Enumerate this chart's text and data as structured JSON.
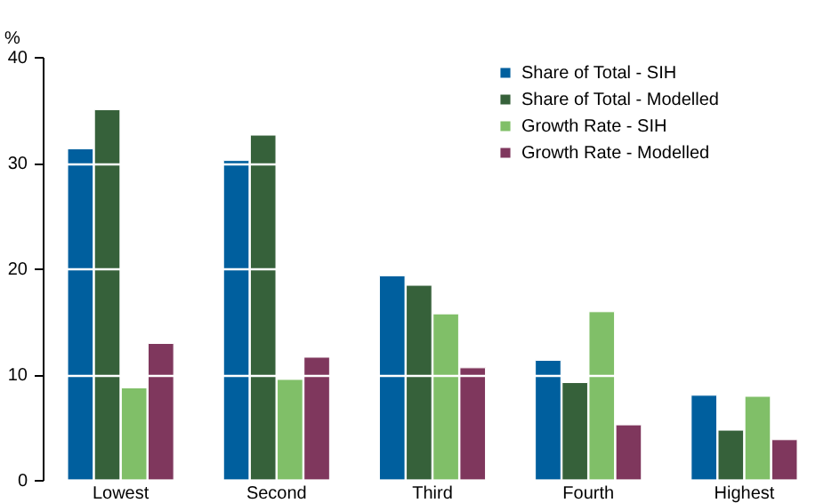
{
  "chart_data": {
    "type": "bar",
    "ylabel": "%",
    "categories": [
      "Lowest",
      "Second",
      "Third",
      "Fourth",
      "Highest"
    ],
    "series": [
      {
        "name": "Share of Total - SIH",
        "color": "#005f9e",
        "values": [
          31.3,
          30.2,
          19.3,
          11.3,
          8.0
        ]
      },
      {
        "name": "Share of Total - Modelled",
        "color": "#36613a",
        "values": [
          35.0,
          32.6,
          18.4,
          9.2,
          4.7
        ]
      },
      {
        "name": "Growth Rate - SIH",
        "color": "#80bf68",
        "values": [
          8.7,
          9.5,
          15.7,
          15.9,
          7.9
        ]
      },
      {
        "name": "Growth Rate - Modelled",
        "color": "#7f375d",
        "values": [
          12.9,
          11.6,
          10.6,
          5.2,
          3.8
        ]
      }
    ],
    "ylim": [
      0,
      40
    ],
    "yticks": [
      0,
      10,
      20,
      30,
      40
    ],
    "grid": "y",
    "legend": "top right"
  }
}
